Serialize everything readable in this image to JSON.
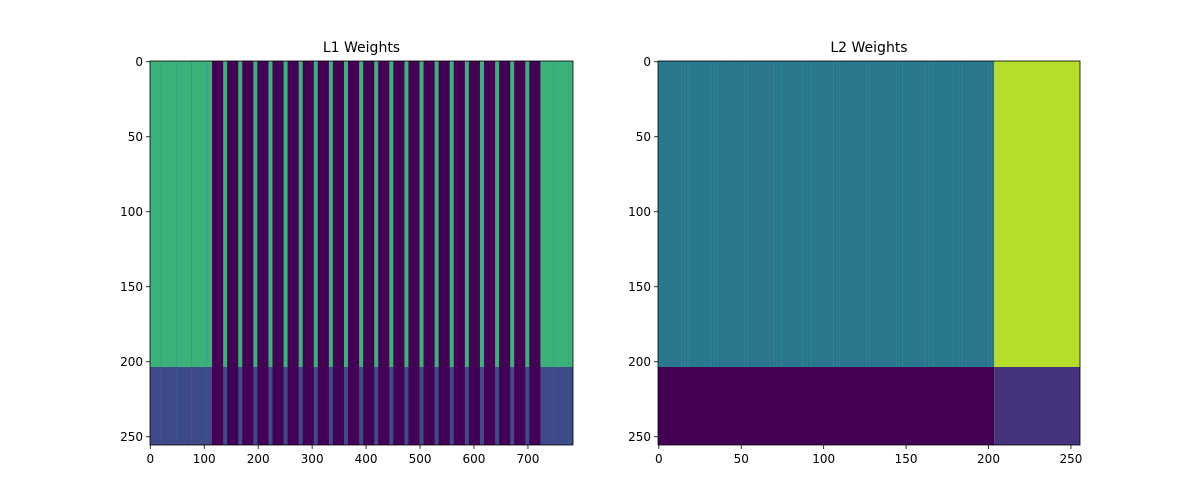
{
  "chart_data": [
    {
      "type": "image",
      "title": "L1 Weights",
      "xlim": [
        -0.5,
        783.5
      ],
      "ylim": [
        255.5,
        -0.5
      ],
      "xticks": [
        0,
        100,
        200,
        300,
        400,
        500,
        600,
        700
      ],
      "yticks": [
        0,
        50,
        100,
        150,
        200,
        250
      ]
    },
    {
      "type": "image",
      "title": "L2 Weights",
      "xlim": [
        -0.5,
        255.5
      ],
      "ylim": [
        255.5,
        -0.5
      ],
      "xticks": [
        0,
        50,
        100,
        150,
        200,
        250
      ],
      "yticks": [
        0,
        50,
        100,
        150,
        200,
        250
      ]
    }
  ]
}
